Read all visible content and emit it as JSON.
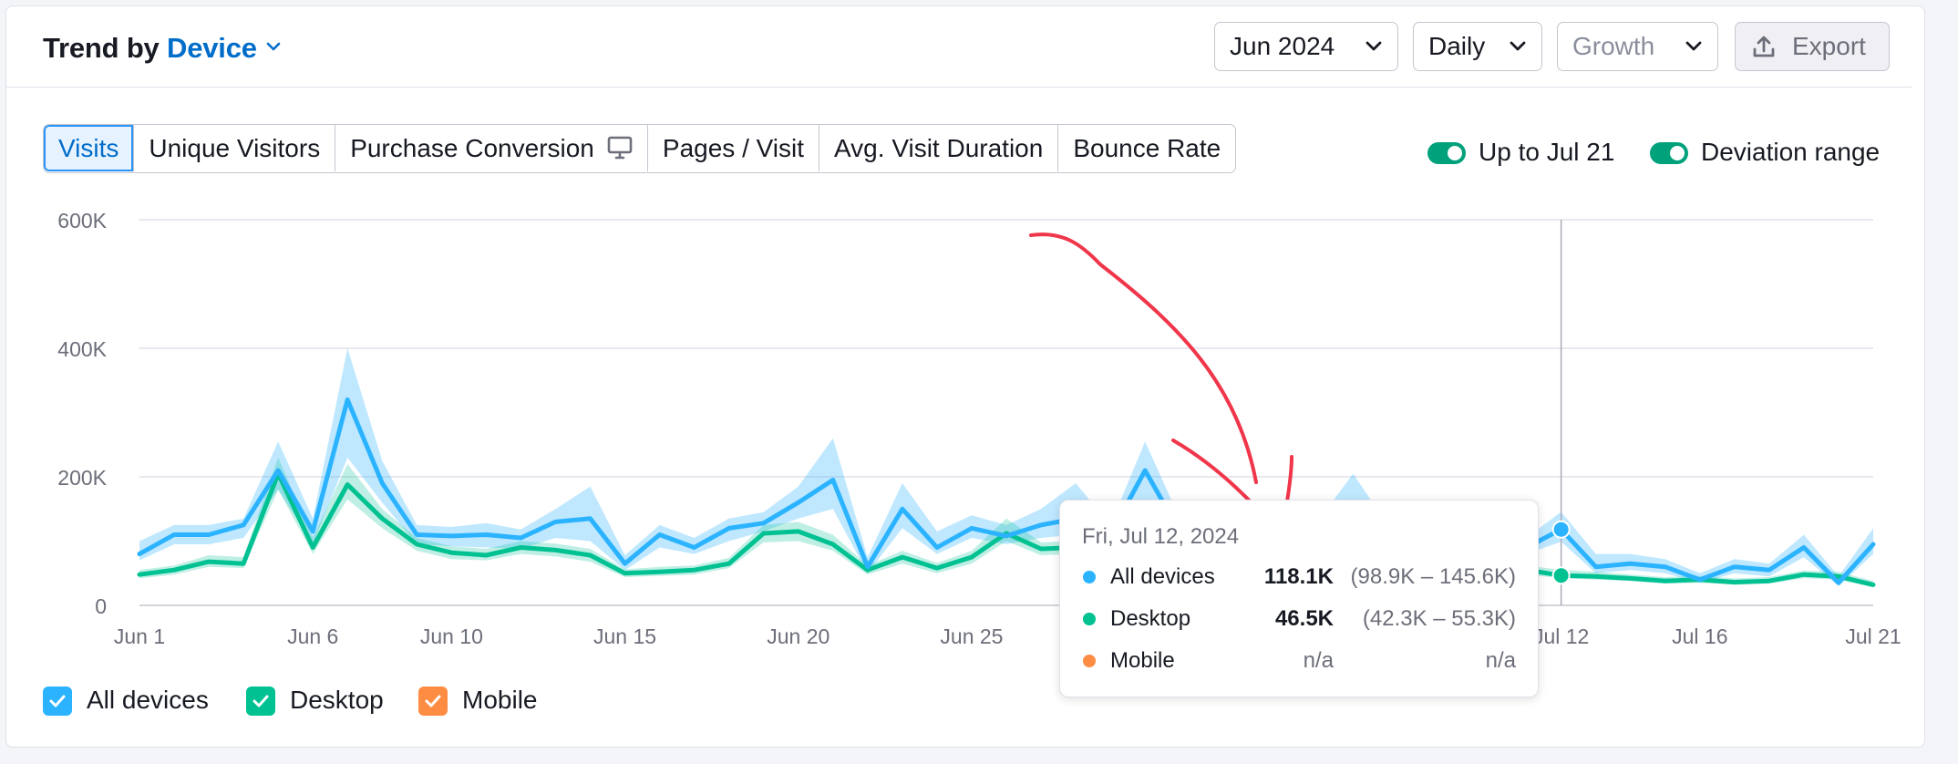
{
  "header": {
    "title_prefix": "Trend by",
    "title_dimension": "Device",
    "controls": {
      "period": "Jun 2024",
      "granularity": "Daily",
      "mode": "Growth",
      "export": "Export"
    }
  },
  "tabs": [
    {
      "label": "Visits",
      "active": true
    },
    {
      "label": "Unique Visitors",
      "active": false
    },
    {
      "label": "Purchase Conversion",
      "active": false
    },
    {
      "label": "Pages / Visit",
      "active": false
    },
    {
      "label": "Avg. Visit Duration",
      "active": false
    },
    {
      "label": "Bounce Rate",
      "active": false
    }
  ],
  "toggles": [
    {
      "label": "Up to Jul 21",
      "on": true
    },
    {
      "label": "Deviation range",
      "on": true
    }
  ],
  "legend": [
    {
      "label": "All devices",
      "color": "#2bb3ff",
      "checked": true
    },
    {
      "label": "Desktop",
      "color": "#00c192",
      "checked": true
    },
    {
      "label": "Mobile",
      "color": "#ff8c43",
      "checked": true
    }
  ],
  "tooltip": {
    "date": "Fri, Jul 12, 2024",
    "rows": [
      {
        "name": "All devices",
        "value": "118.1K",
        "range": "(98.9K – 145.6K)",
        "color": "#2bb3ff"
      },
      {
        "name": "Desktop",
        "value": "46.5K",
        "range": "(42.3K – 55.3K)",
        "color": "#00c192"
      },
      {
        "name": "Mobile",
        "value": "n/a",
        "range": "n/a",
        "color": "#ff8c43"
      }
    ]
  },
  "annotation": {
    "type": "hand-drawn-arrow",
    "color": "#f0364a"
  },
  "chart_data": {
    "type": "line",
    "title": "",
    "xlabel": "",
    "ylabel": "",
    "ylim": [
      0,
      600000
    ],
    "yticks": [
      0,
      200000,
      400000,
      600000
    ],
    "ytick_labels": [
      "0",
      "200K",
      "400K",
      "600K"
    ],
    "x": [
      "Jun 1",
      "Jun 2",
      "Jun 3",
      "Jun 4",
      "Jun 5",
      "Jun 6",
      "Jun 7",
      "Jun 8",
      "Jun 9",
      "Jun 10",
      "Jun 11",
      "Jun 12",
      "Jun 13",
      "Jun 14",
      "Jun 15",
      "Jun 16",
      "Jun 17",
      "Jun 18",
      "Jun 19",
      "Jun 20",
      "Jun 21",
      "Jun 22",
      "Jun 23",
      "Jun 24",
      "Jun 25",
      "Jun 26",
      "Jun 27",
      "Jun 28",
      "Jun 29",
      "Jun 30",
      "Jul 1",
      "Jul 2",
      "Jul 3",
      "Jul 4",
      "Jul 5",
      "Jul 6",
      "Jul 7",
      "Jul 8",
      "Jul 9",
      "Jul 10",
      "Jul 11",
      "Jul 12",
      "Jul 13",
      "Jul 14",
      "Jul 15",
      "Jul 16",
      "Jul 17",
      "Jul 18",
      "Jul 19",
      "Jul 20",
      "Jul 21"
    ],
    "xtick_labels": [
      "Jun 1",
      "Jun 6",
      "Jun 10",
      "Jun 15",
      "Jun 20",
      "Jun 25",
      "Jul 12",
      "Jul 16",
      "Jul 21"
    ],
    "highlight_x": "Jul 12",
    "series": [
      {
        "name": "All devices",
        "color": "#2bb3ff",
        "values": [
          80000,
          110000,
          110000,
          125000,
          210000,
          115000,
          320000,
          190000,
          110000,
          108000,
          110000,
          105000,
          130000,
          135000,
          65000,
          110000,
          90000,
          120000,
          128000,
          160000,
          195000,
          60000,
          150000,
          90000,
          120000,
          108000,
          125000,
          135000,
          110000,
          210000,
          115000,
          110000,
          105000,
          110000,
          115000,
          120000,
          110000,
          140000,
          110000,
          105000,
          90000,
          118100,
          60000,
          65000,
          60000,
          40000,
          60000,
          55000,
          90000,
          35000,
          95000
        ],
        "band_low": [
          70000,
          95000,
          95000,
          105000,
          180000,
          95000,
          230000,
          160000,
          95000,
          92000,
          90000,
          88000,
          105000,
          100000,
          55000,
          90000,
          80000,
          100000,
          115000,
          135000,
          150000,
          50000,
          120000,
          80000,
          105000,
          95000,
          105000,
          110000,
          95000,
          150000,
          100000,
          95000,
          90000,
          95000,
          100000,
          105000,
          95000,
          110000,
          90000,
          85000,
          80000,
          98900,
          50000,
          55000,
          50000,
          35000,
          50000,
          45000,
          75000,
          30000,
          80000
        ],
        "band_high": [
          100000,
          125000,
          125000,
          135000,
          255000,
          135000,
          400000,
          225000,
          125000,
          122000,
          128000,
          118000,
          150000,
          185000,
          78000,
          125000,
          105000,
          135000,
          145000,
          185000,
          260000,
          75000,
          190000,
          115000,
          140000,
          125000,
          150000,
          190000,
          125000,
          255000,
          135000,
          125000,
          120000,
          125000,
          132000,
          205000,
          125000,
          150000,
          125000,
          120000,
          105000,
          145600,
          80000,
          80000,
          72000,
          50000,
          72000,
          65000,
          110000,
          45000,
          120000
        ]
      },
      {
        "name": "Desktop",
        "color": "#00c192",
        "values": [
          48000,
          55000,
          68000,
          65000,
          205000,
          90000,
          188000,
          135000,
          95000,
          82000,
          78000,
          90000,
          86000,
          78000,
          50000,
          52000,
          55000,
          65000,
          112000,
          115000,
          95000,
          55000,
          75000,
          58000,
          75000,
          112000,
          88000,
          90000,
          70000,
          85000,
          75000,
          70000,
          72000,
          70000,
          75000,
          78000,
          72000,
          85000,
          70000,
          65000,
          55000,
          46500,
          45000,
          42000,
          38000,
          40000,
          36000,
          38000,
          48000,
          45000,
          32000
        ],
        "band_low": [
          42000,
          48000,
          60000,
          58000,
          180000,
          80000,
          165000,
          120000,
          85000,
          72000,
          70000,
          80000,
          76000,
          68000,
          44000,
          46000,
          48000,
          58000,
          98000,
          100000,
          85000,
          48000,
          65000,
          50000,
          65000,
          100000,
          78000,
          80000,
          62000,
          75000,
          66000,
          62000,
          64000,
          62000,
          66000,
          68000,
          64000,
          75000,
          62000,
          58000,
          48000,
          42300,
          40000,
          38000,
          34000,
          35000,
          32000,
          34000,
          42000,
          40000,
          28000
        ],
        "band_high": [
          55000,
          62000,
          78000,
          75000,
          230000,
          105000,
          220000,
          150000,
          105000,
          92000,
          88000,
          100000,
          96000,
          88000,
          56000,
          60000,
          62000,
          74000,
          125000,
          130000,
          110000,
          62000,
          85000,
          66000,
          85000,
          135000,
          98000,
          100000,
          80000,
          95000,
          84000,
          80000,
          82000,
          80000,
          84000,
          88000,
          82000,
          95000,
          80000,
          74000,
          62000,
          55300,
          52000,
          48000,
          44000,
          46000,
          42000,
          44000,
          54000,
          52000,
          38000
        ]
      }
    ]
  }
}
